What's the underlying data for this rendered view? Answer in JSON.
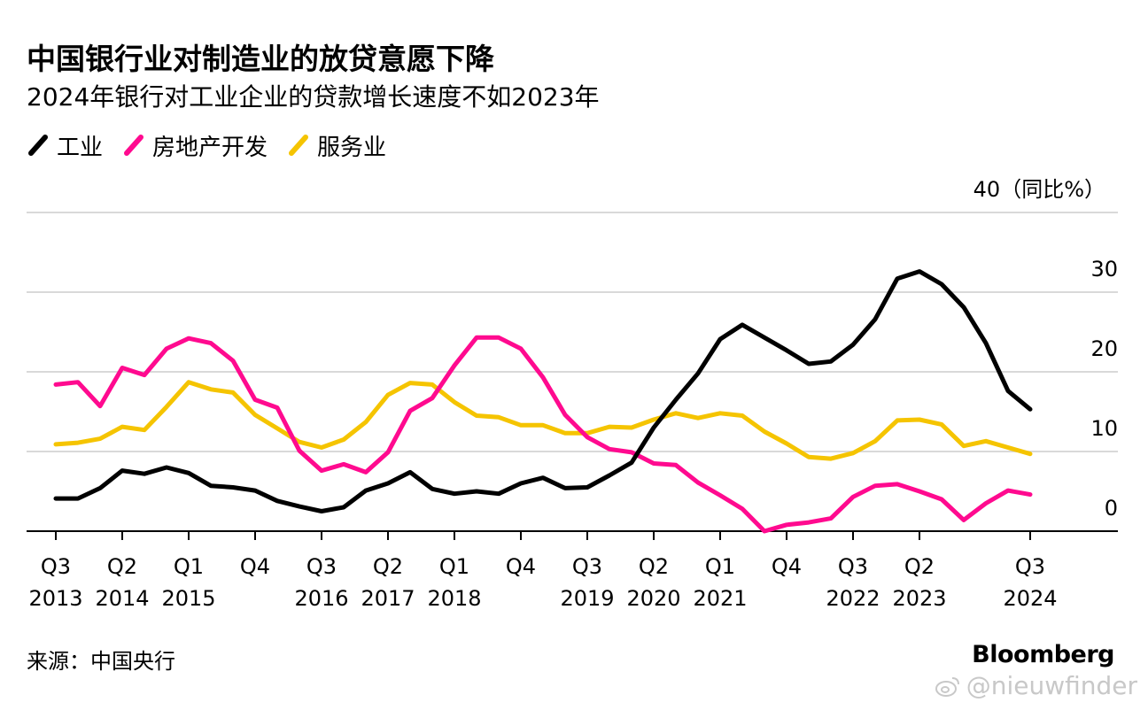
{
  "title": "中国银行业对制造业的放贷意愿下降",
  "subtitle": "2024年银行对工业企业的贷款增长速度不如2023年",
  "source": "来源：中国央行",
  "brand": "Bloomberg",
  "watermark": "@nieuwfinder",
  "watermark_icon": "weibo-icon",
  "colors": {
    "industry": "#000000",
    "real_estate": "#ff0a8f",
    "services": "#f5c400",
    "grid": "#d9d9d9",
    "axis": "#000000"
  },
  "chart_data": {
    "type": "line",
    "ylabel_top": "40（同比%）",
    "ylim": [
      0,
      40
    ],
    "yticks": [
      0,
      10,
      20,
      30
    ],
    "grid": true,
    "legend_position": "top-left",
    "x_tick_labels": [
      {
        "q": "Q3",
        "y": "2013"
      },
      {
        "q": "Q2",
        "y": "2014"
      },
      {
        "q": "Q1",
        "y": "2015"
      },
      {
        "q": "Q4",
        "y": ""
      },
      {
        "q": "Q3",
        "y": "2016"
      },
      {
        "q": "Q2",
        "y": "2017"
      },
      {
        "q": "Q1",
        "y": "2018"
      },
      {
        "q": "Q4",
        "y": ""
      },
      {
        "q": "Q3",
        "y": "2019"
      },
      {
        "q": "Q2",
        "y": "2020"
      },
      {
        "q": "Q1",
        "y": "2021"
      },
      {
        "q": "Q4",
        "y": ""
      },
      {
        "q": "Q3",
        "y": "2022"
      },
      {
        "q": "Q2",
        "y": "2023"
      },
      {
        "q": "Q3",
        "y": "2024"
      }
    ],
    "x_tick_index": [
      0,
      3,
      6,
      9,
      12,
      15,
      18,
      21,
      24,
      27,
      30,
      33,
      36,
      39,
      44
    ],
    "n_points": 45,
    "series": [
      {
        "name": "工业",
        "color_key": "industry",
        "values": [
          4.1,
          4.1,
          5.4,
          7.6,
          7.2,
          8.0,
          7.3,
          5.7,
          5.5,
          5.1,
          3.8,
          3.1,
          2.5,
          3.0,
          5.1,
          6.0,
          7.4,
          5.3,
          4.7,
          5.0,
          4.7,
          6.0,
          6.7,
          5.4,
          5.5,
          7.0,
          8.6,
          13.0,
          16.5,
          19.8,
          24.1,
          25.9,
          24.3,
          22.7,
          21.0,
          21.3,
          23.4,
          26.6,
          31.7,
          32.6,
          31.0,
          28.1,
          23.6,
          17.6,
          15.3
        ]
      },
      {
        "name": "房地产开发",
        "color_key": "real_estate",
        "values": [
          18.4,
          18.7,
          15.7,
          20.5,
          19.6,
          22.9,
          24.2,
          23.6,
          21.4,
          16.5,
          15.5,
          10.1,
          7.6,
          8.4,
          7.4,
          9.9,
          15.1,
          16.7,
          20.8,
          24.3,
          24.3,
          22.9,
          19.3,
          14.6,
          11.8,
          10.3,
          9.9,
          8.5,
          8.3,
          6.1,
          4.5,
          2.8,
          0.0,
          0.8,
          1.1,
          1.6,
          4.3,
          5.7,
          5.9,
          5.0,
          4.0,
          1.4,
          3.5,
          5.1,
          4.6
        ]
      },
      {
        "name": "服务业",
        "color_key": "services",
        "values": [
          10.9,
          11.1,
          11.6,
          13.1,
          12.7,
          15.6,
          18.7,
          17.8,
          17.4,
          14.6,
          12.9,
          11.2,
          10.5,
          11.5,
          13.7,
          17.1,
          18.6,
          18.4,
          16.2,
          14.5,
          14.3,
          13.3,
          13.3,
          12.3,
          12.3,
          13.1,
          13.0,
          14.0,
          14.8,
          14.2,
          14.8,
          14.5,
          12.5,
          11.0,
          9.3,
          9.1,
          9.8,
          11.3,
          13.9,
          14.0,
          13.4,
          10.7,
          11.3,
          10.5,
          9.7
        ]
      }
    ]
  }
}
